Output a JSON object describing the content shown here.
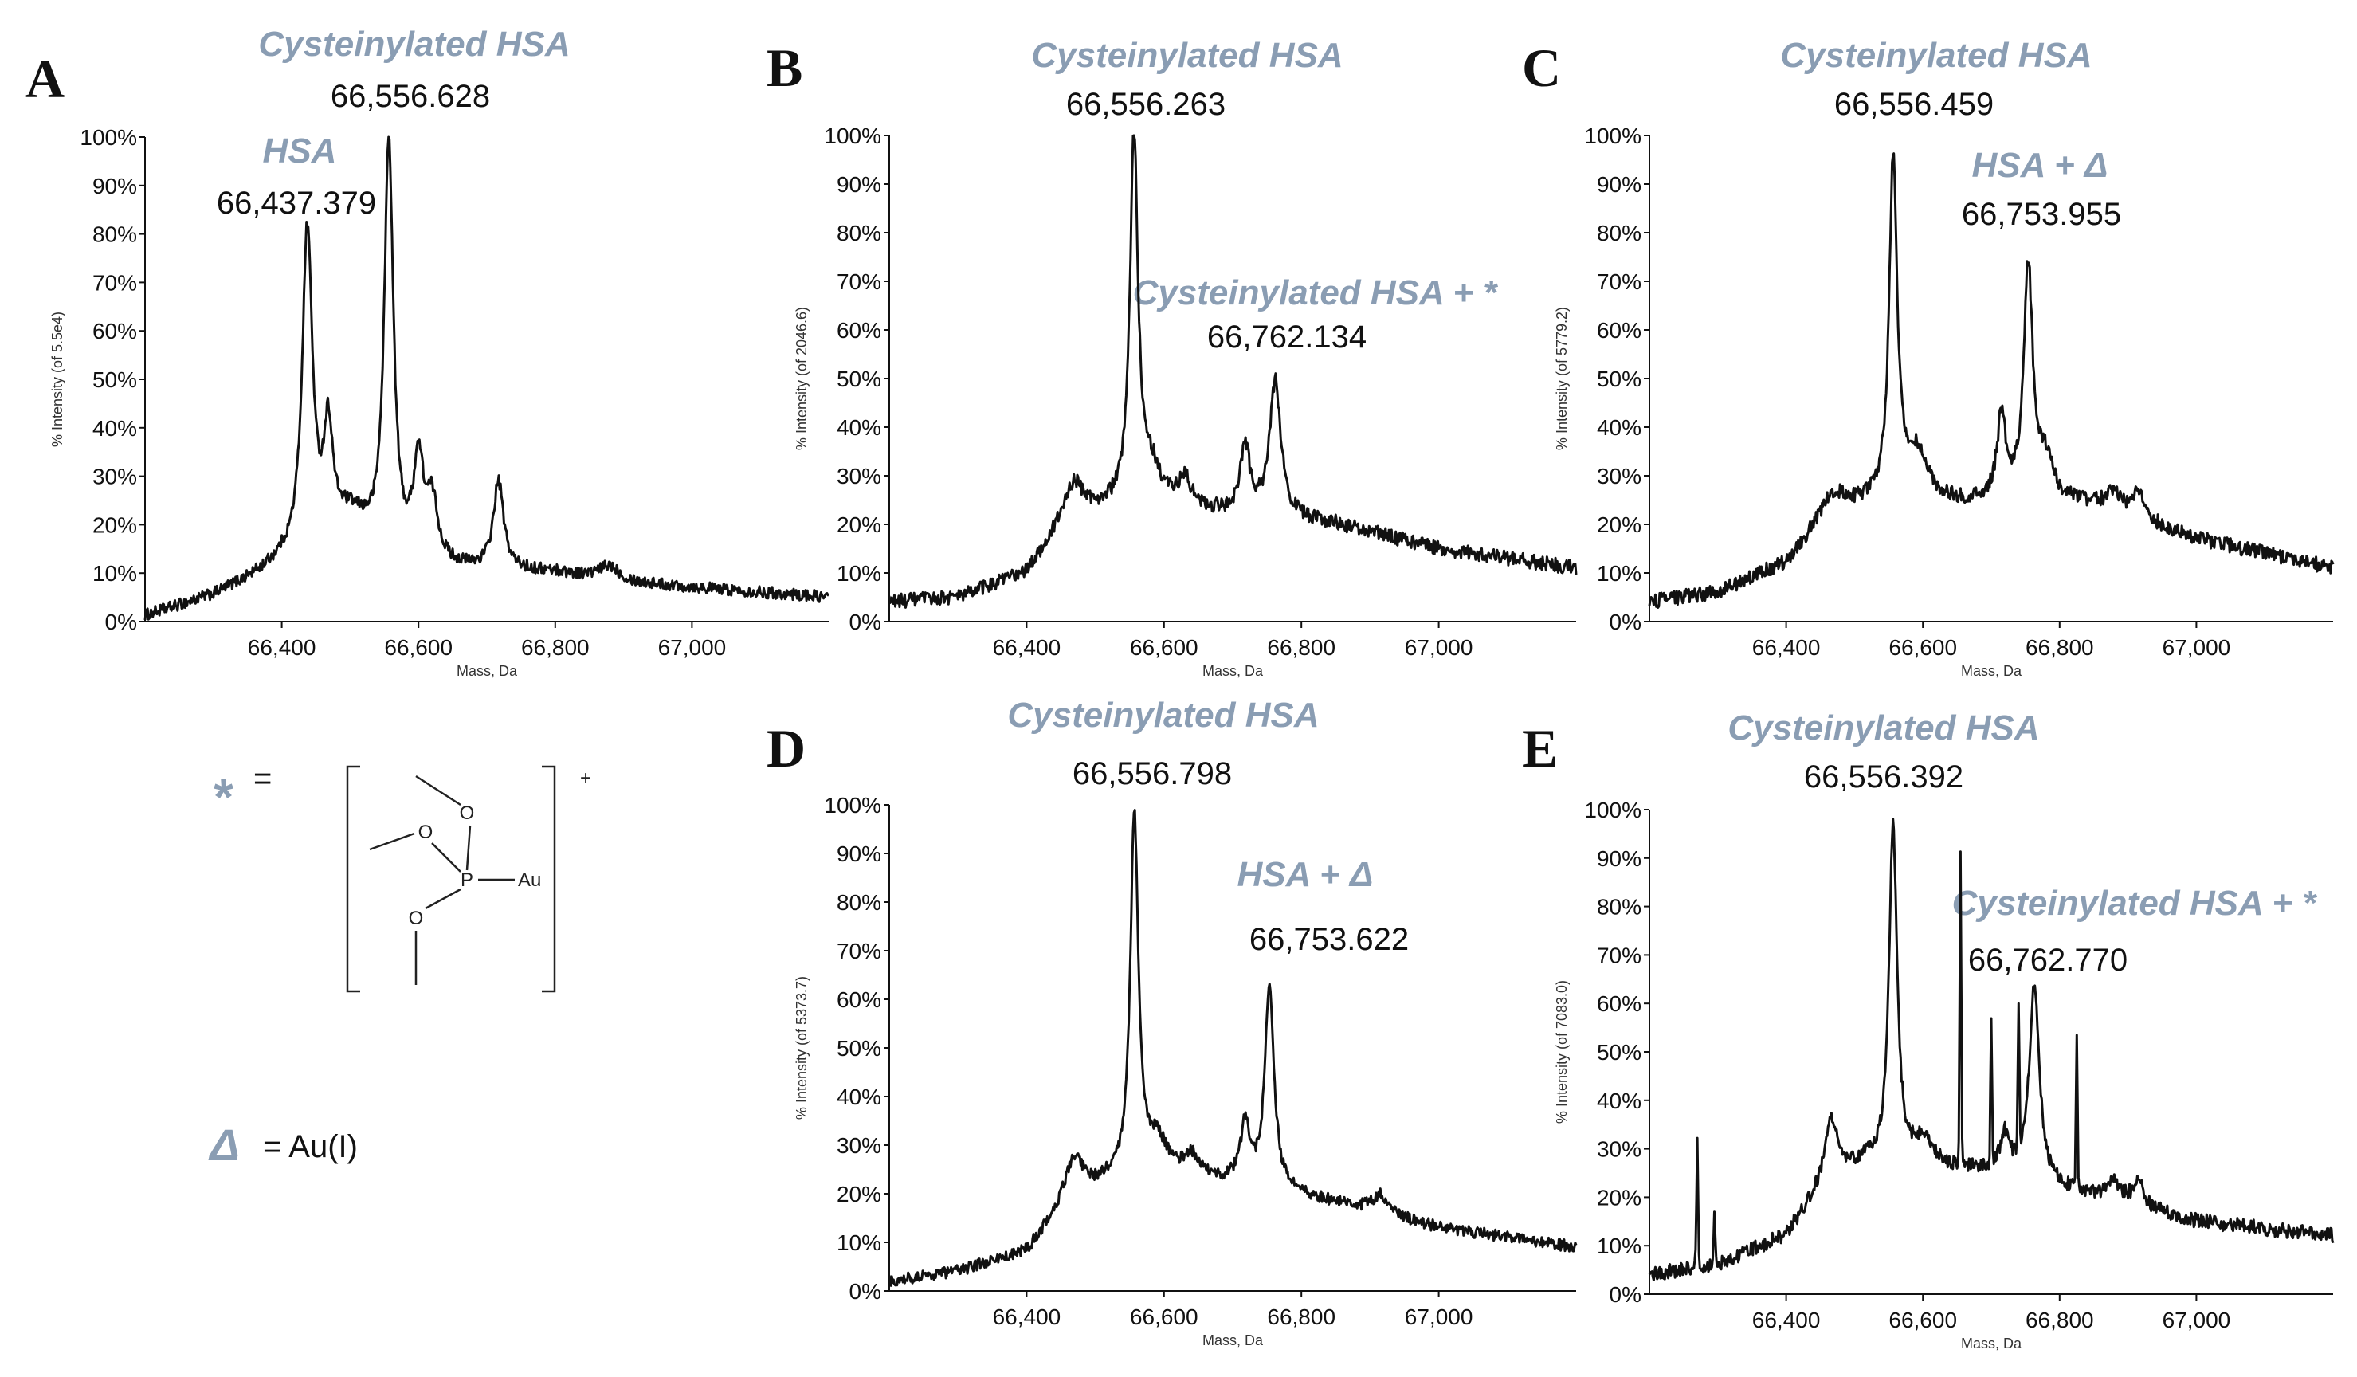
{
  "figure": {
    "legend": {
      "star_symbol": "*",
      "equals": "=",
      "structure_charge": "+",
      "structure_atoms": {
        "phosphorus": "P",
        "gold": "Au",
        "oxygen": "O"
      },
      "delta_symbol": "Δ",
      "delta_definition": "= Au(I)"
    }
  },
  "chart_data": [
    {
      "type": "line",
      "panel": "A",
      "xlabel": "Mass, Da",
      "ylabel": "% Intensity (of 5.5e4)",
      "xlim": [
        66200,
        67200
      ],
      "ylim": [
        0,
        100
      ],
      "xticks": [
        66400,
        66600,
        66800,
        67000
      ],
      "xtick_labels": [
        "66,400",
        "66,600",
        "66,800",
        "67,000"
      ],
      "ytick_labels": [
        "0%",
        "10%",
        "20%",
        "30%",
        "40%",
        "50%",
        "60%",
        "70%",
        "80%",
        "90%",
        "100%"
      ],
      "noise": 1.2,
      "baseline": [
        [
          66200,
          1
        ],
        [
          66300,
          5
        ],
        [
          66400,
          11
        ],
        [
          66800,
          10
        ],
        [
          66900,
          8
        ],
        [
          67200,
          5
        ]
      ],
      "peaks": [
        [
          66437.4,
          67,
          9
        ],
        [
          66468,
          22,
          8
        ],
        [
          66500,
          10,
          40
        ],
        [
          66556.6,
          85,
          8
        ],
        [
          66600,
          20,
          9
        ],
        [
          66620,
          12,
          10
        ],
        [
          66717,
          18,
          9
        ],
        [
          66880,
          3,
          18
        ]
      ],
      "annotations": [
        {
          "label": "Cysteinylated HSA",
          "mass": "66,556.628"
        },
        {
          "label": "HSA",
          "mass": "66,437.379"
        }
      ]
    },
    {
      "type": "line",
      "panel": "B",
      "xlabel": "Mass, Da",
      "ylabel": "% Intensity (of 2046.6)",
      "xlim": [
        66200,
        67200
      ],
      "ylim": [
        0,
        100
      ],
      "xticks": [
        66400,
        66600,
        66800,
        67000
      ],
      "xtick_labels": [
        "66,400",
        "66,600",
        "66,800",
        "67,000"
      ],
      "ytick_labels": [
        "0%",
        "10%",
        "20%",
        "30%",
        "40%",
        "50%",
        "60%",
        "70%",
        "80%",
        "90%",
        "100%"
      ],
      "noise": 1.5,
      "baseline": [
        [
          66200,
          4
        ],
        [
          66300,
          5
        ],
        [
          66400,
          10
        ],
        [
          66460,
          22
        ],
        [
          66520,
          23
        ],
        [
          66700,
          22
        ],
        [
          66850,
          20
        ],
        [
          67000,
          15
        ],
        [
          67200,
          11
        ]
      ],
      "peaks": [
        [
          66470,
          6,
          15
        ],
        [
          66556.3,
          75,
          7
        ],
        [
          66580,
          8,
          20
        ],
        [
          66630,
          6,
          12
        ],
        [
          66718,
          14,
          8
        ],
        [
          66762.1,
          28,
          10
        ]
      ],
      "annotations": [
        {
          "label": "Cysteinylated HSA",
          "mass": "66,556.263"
        },
        {
          "label": "Cysteinylated HSA + *",
          "mass": "66,762.134"
        }
      ]
    },
    {
      "type": "line",
      "panel": "C",
      "xlabel": "Mass, Da",
      "ylabel": "% Intensity (of 5779.2)",
      "xlim": [
        66200,
        67200
      ],
      "ylim": [
        0,
        100
      ],
      "xticks": [
        66400,
        66600,
        66800,
        67000
      ],
      "xtick_labels": [
        "66,400",
        "66,600",
        "66,800",
        "67,000"
      ],
      "ytick_labels": [
        "0%",
        "10%",
        "20%",
        "30%",
        "40%",
        "50%",
        "60%",
        "70%",
        "80%",
        "90%",
        "100%"
      ],
      "noise": 1.5,
      "baseline": [
        [
          66200,
          4
        ],
        [
          66300,
          6
        ],
        [
          66400,
          12
        ],
        [
          66460,
          22
        ],
        [
          66520,
          24
        ],
        [
          66700,
          24
        ],
        [
          66850,
          24
        ],
        [
          67000,
          17
        ],
        [
          67200,
          11
        ]
      ],
      "peaks": [
        [
          66470,
          4,
          18
        ],
        [
          66556.5,
          70,
          7
        ],
        [
          66590,
          10,
          20
        ],
        [
          66715,
          17,
          8
        ],
        [
          66754,
          48,
          8
        ],
        [
          66780,
          8,
          14
        ],
        [
          66880,
          4,
          12
        ],
        [
          66915,
          5,
          10
        ]
      ],
      "annotations": [
        {
          "label": "Cysteinylated HSA",
          "mass": "66,556.459"
        },
        {
          "label": "HSA + Δ",
          "mass": "66,753.955"
        }
      ]
    },
    {
      "type": "line",
      "panel": "D",
      "xlabel": "Mass, Da",
      "ylabel": "% Intensity (of 5373.7)",
      "xlim": [
        66200,
        67200
      ],
      "ylim": [
        0,
        100
      ],
      "xticks": [
        66400,
        66600,
        66800,
        67000
      ],
      "xtick_labels": [
        "66,400",
        "66,600",
        "66,800",
        "67,000"
      ],
      "ytick_labels": [
        "0%",
        "10%",
        "20%",
        "30%",
        "40%",
        "50%",
        "60%",
        "70%",
        "80%",
        "90%",
        "100%"
      ],
      "noise": 1.2,
      "baseline": [
        [
          66200,
          2
        ],
        [
          66300,
          4
        ],
        [
          66400,
          8
        ],
        [
          66460,
          19
        ],
        [
          66520,
          22
        ],
        [
          66700,
          22
        ],
        [
          66850,
          18
        ],
        [
          67000,
          13
        ],
        [
          67200,
          9
        ]
      ],
      "peaks": [
        [
          66470,
          8,
          14
        ],
        [
          66556.8,
          75,
          7
        ],
        [
          66590,
          8,
          20
        ],
        [
          66640,
          5,
          14
        ],
        [
          66718,
          12,
          8
        ],
        [
          66753.6,
          42,
          8
        ],
        [
          66915,
          4,
          14
        ]
      ],
      "annotations": [
        {
          "label": "Cysteinylated HSA",
          "mass": "66,556.798"
        },
        {
          "label": "HSA + Δ",
          "mass": "66,753.622"
        }
      ]
    },
    {
      "type": "line",
      "panel": "E",
      "xlabel": "Mass, Da",
      "ylabel": "% Intensity (of 7083.0)",
      "xlim": [
        66200,
        67200
      ],
      "ylim": [
        0,
        100
      ],
      "xticks": [
        66400,
        66600,
        66800,
        67000
      ],
      "xtick_labels": [
        "66,400",
        "66,600",
        "66,800",
        "67,000"
      ],
      "ytick_labels": [
        "0%",
        "10%",
        "20%",
        "30%",
        "40%",
        "50%",
        "60%",
        "70%",
        "80%",
        "90%",
        "100%"
      ],
      "noise": 1.5,
      "baseline": [
        [
          66200,
          4
        ],
        [
          66300,
          6
        ],
        [
          66400,
          12
        ],
        [
          66460,
          24
        ],
        [
          66520,
          27
        ],
        [
          66700,
          25
        ],
        [
          66850,
          20
        ],
        [
          67000,
          15
        ],
        [
          67200,
          12
        ]
      ],
      "peaks": [
        [
          66466,
          12,
          10
        ],
        [
          66556.4,
          70,
          7
        ],
        [
          66600,
          5,
          18
        ],
        [
          66720,
          8,
          8
        ],
        [
          66762.8,
          40,
          9
        ],
        [
          66880,
          4,
          12
        ],
        [
          66915,
          5,
          10
        ]
      ],
      "spikes": [
        [
          66270,
          27
        ],
        [
          66295,
          10
        ],
        [
          66655,
          64
        ],
        [
          66700,
          30
        ],
        [
          66740,
          30
        ],
        [
          66825,
          30
        ]
      ],
      "annotations": [
        {
          "label": "Cysteinylated HSA",
          "mass": "66,556.392"
        },
        {
          "label": "Cysteinylated HSA + *",
          "mass": "66,762.770"
        }
      ]
    }
  ]
}
